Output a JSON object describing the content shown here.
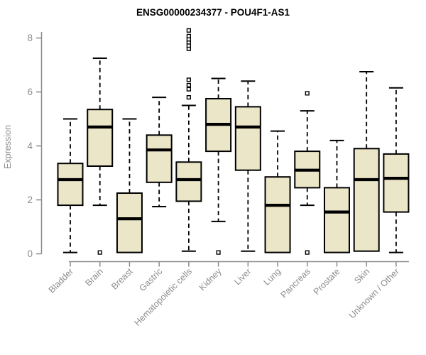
{
  "title": "ENSG00000234377 - POU4F1-AS1",
  "chart_data": {
    "type": "boxplot",
    "title": "ENSG00000234377 - POU4F1-AS1",
    "xlabel": "",
    "ylabel": "Expression",
    "ylim": [
      0,
      8.3
    ],
    "y_ticks": [
      0,
      2,
      4,
      6,
      8
    ],
    "grid": false,
    "legend": "none",
    "box_fill_color": "#ece6c8",
    "box_stroke_color": "#000000",
    "axis_color": "#8c8c8c",
    "categories": [
      "Bladder",
      "Brain",
      "Breast",
      "Gastric",
      "Hematopoietic cells",
      "Kidney",
      "Liver",
      "Lung",
      "Pancreas",
      "Prostate",
      "Skin",
      "Unknown / Other"
    ],
    "series": [
      {
        "label": "Bladder",
        "low": 0.05,
        "q1": 1.8,
        "median": 2.75,
        "q3": 3.35,
        "high": 5.0,
        "outliers": []
      },
      {
        "label": "Brain",
        "low": 1.8,
        "q1": 3.25,
        "median": 4.7,
        "q3": 5.35,
        "high": 7.25,
        "outliers": [
          0.05
        ]
      },
      {
        "label": "Breast",
        "low": 0.05,
        "q1": 0.05,
        "median": 1.3,
        "q3": 2.25,
        "high": 5.0,
        "outliers": []
      },
      {
        "label": "Gastric",
        "low": 1.75,
        "q1": 2.65,
        "median": 3.85,
        "q3": 4.4,
        "high": 5.8,
        "outliers": []
      },
      {
        "label": "Hematopoietic cells",
        "low": 0.1,
        "q1": 1.95,
        "median": 2.75,
        "q3": 3.4,
        "high": 5.5,
        "outliers": [
          5.8,
          6.1,
          6.25,
          6.45,
          7.6,
          7.72,
          7.84,
          7.95,
          8.07,
          8.28
        ]
      },
      {
        "label": "Kidney",
        "low": 1.2,
        "q1": 3.8,
        "median": 4.8,
        "q3": 5.75,
        "high": 6.5,
        "outliers": [
          0.05
        ]
      },
      {
        "label": "Liver",
        "low": 0.1,
        "q1": 3.1,
        "median": 4.7,
        "q3": 5.45,
        "high": 6.4,
        "outliers": []
      },
      {
        "label": "Lung",
        "low": 0.05,
        "q1": 0.05,
        "median": 1.8,
        "q3": 2.85,
        "high": 4.55,
        "outliers": []
      },
      {
        "label": "Pancreas",
        "low": 1.8,
        "q1": 2.45,
        "median": 3.1,
        "q3": 3.8,
        "high": 5.3,
        "outliers": [
          5.95,
          0.05
        ]
      },
      {
        "label": "Prostate",
        "low": 0.05,
        "q1": 0.05,
        "median": 1.55,
        "q3": 2.45,
        "high": 4.2,
        "outliers": []
      },
      {
        "label": "Skin",
        "low": 0.1,
        "q1": 0.1,
        "median": 2.75,
        "q3": 3.9,
        "high": 6.75,
        "outliers": []
      },
      {
        "label": "Unknown / Other",
        "low": 0.05,
        "q1": 1.55,
        "median": 2.8,
        "q3": 3.7,
        "high": 6.15,
        "outliers": []
      }
    ]
  }
}
